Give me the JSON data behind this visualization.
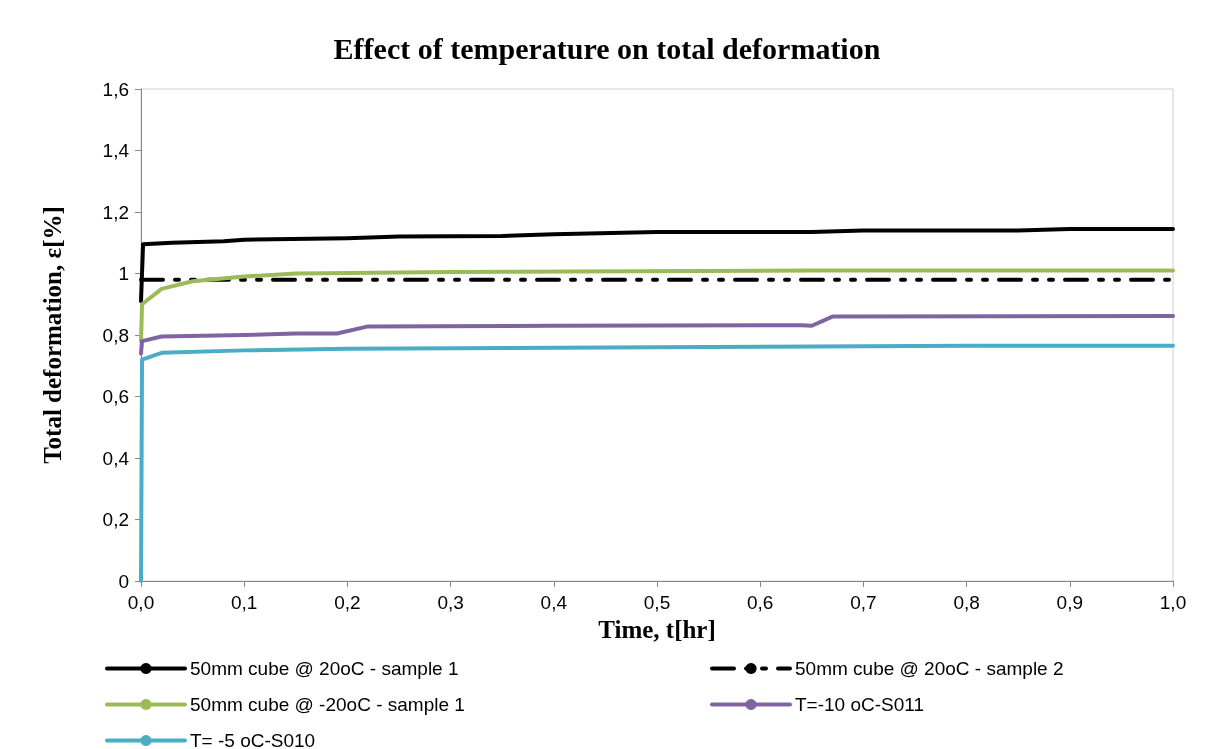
{
  "chart_data": {
    "type": "line",
    "title": "Effect of temperature on total deformation",
    "xlabel": "Time, t[hr]",
    "ylabel": "Total deformation, ε[%]",
    "xlim": [
      0,
      1
    ],
    "xticks": [
      {
        "value": 0,
        "label": "0,0"
      },
      {
        "value": 0.1,
        "label": "0,1"
      },
      {
        "value": 0.2,
        "label": "0,2"
      },
      {
        "value": 0.3,
        "label": "0,3"
      },
      {
        "value": 0.4,
        "label": "0,4"
      },
      {
        "value": 0.5,
        "label": "0,5"
      },
      {
        "value": 0.6,
        "label": "0,6"
      },
      {
        "value": 0.7,
        "label": "0,7"
      },
      {
        "value": 0.8,
        "label": "0,8"
      },
      {
        "value": 0.9,
        "label": "0,9"
      },
      {
        "value": 1,
        "label": "1,0"
      }
    ],
    "ylim": [
      0,
      1.6
    ],
    "yticks": [
      0,
      {
        "value": 0.2,
        "label": "0,2"
      },
      {
        "value": 0.4,
        "label": "0,4"
      },
      {
        "value": 0.6,
        "label": "0,6"
      },
      {
        "value": 0.8,
        "label": "0,8"
      },
      1,
      {
        "value": 1.2,
        "label": "1,2"
      },
      {
        "value": 1.4,
        "label": "1,4"
      },
      {
        "value": 1.6,
        "label": "1,6"
      }
    ],
    "grid": false,
    "legend": "bottom",
    "marker": "none",
    "series": [
      {
        "name": "50mm cube @ 20oC - sample 1",
        "color": "#000000",
        "line_style": "solid",
        "x": [
          0,
          0.002,
          0.03,
          0.08,
          0.1,
          0.2,
          0.25,
          0.35,
          0.4,
          0.5,
          0.65,
          0.7,
          0.85,
          0.9,
          1.0
        ],
        "values": [
          0.91,
          1.095,
          1.1,
          1.105,
          1.11,
          1.115,
          1.12,
          1.122,
          1.128,
          1.135,
          1.135,
          1.14,
          1.14,
          1.145,
          1.145
        ]
      },
      {
        "name": "50mm cube @ 20oC - sample 2",
        "color": "#000000",
        "line_style": "dashed",
        "x": [
          0,
          1.0
        ],
        "values": [
          0.98,
          0.98
        ]
      },
      {
        "name": "50mm cube @ -20oC - sample 1",
        "color": "#9bbb59",
        "line_style": "solid",
        "x": [
          0,
          0.001,
          0.02,
          0.05,
          0.1,
          0.15,
          0.3,
          0.65,
          1.0
        ],
        "values": [
          0.78,
          0.9,
          0.95,
          0.975,
          0.99,
          1.0,
          1.005,
          1.01,
          1.01
        ]
      },
      {
        "name": "T=-10 oC-S011",
        "color": "#8064a2",
        "line_style": "solid",
        "x": [
          0,
          0.001,
          0.02,
          0.1,
          0.15,
          0.19,
          0.22,
          0.4,
          0.64,
          0.65,
          0.67,
          1.0
        ],
        "values": [
          0.74,
          0.78,
          0.795,
          0.8,
          0.805,
          0.805,
          0.828,
          0.83,
          0.832,
          0.83,
          0.86,
          0.862
        ]
      },
      {
        "name": "T= -5 oC-S010",
        "color": "#4bacc6",
        "line_style": "solid",
        "x": [
          0,
          0.001,
          0.02,
          0.1,
          0.2,
          0.5,
          0.8,
          1.0
        ],
        "values": [
          0,
          0.72,
          0.742,
          0.75,
          0.755,
          0.76,
          0.765,
          0.765
        ]
      }
    ]
  }
}
